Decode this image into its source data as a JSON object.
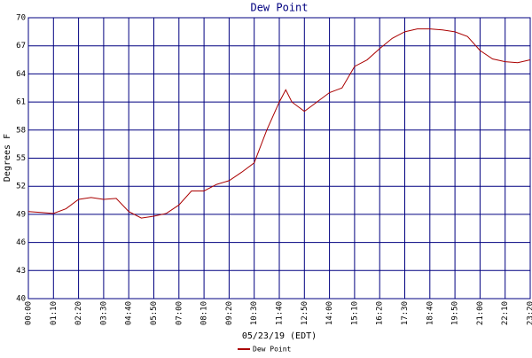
{
  "chart_data": {
    "type": "line",
    "title": "Dew Point",
    "x_label": "05/23/19 (EDT)",
    "y_label": "Degrees F",
    "x": [
      0,
      35,
      70,
      105,
      140,
      175,
      210,
      245,
      280,
      315,
      350,
      385,
      420,
      455,
      490,
      525,
      560,
      595,
      630,
      665,
      700,
      718,
      735,
      770,
      805,
      840,
      875,
      910,
      945,
      980,
      1015,
      1050,
      1085,
      1120,
      1155,
      1190,
      1225,
      1260,
      1295,
      1330,
      1365,
      1400
    ],
    "series": [
      {
        "name": "Dew Point",
        "color": "#aa0000",
        "values": [
          49.3,
          49.2,
          49.1,
          49.6,
          50.6,
          50.8,
          50.6,
          50.7,
          49.3,
          48.6,
          48.8,
          49.1,
          50.0,
          51.5,
          51.5,
          52.2,
          52.6,
          53.5,
          54.5,
          58,
          61,
          62.3,
          61,
          60,
          61,
          62,
          62.5,
          64.8,
          65.5,
          66.7,
          67.8,
          68.5,
          68.8,
          68.8,
          68.7,
          68.5,
          68,
          66.5,
          65.6,
          65.3,
          65.2,
          65.5
        ]
      }
    ],
    "xlim": [
      0,
      1400
    ],
    "xticks": [
      {
        "value": 0,
        "label": "00:00"
      },
      {
        "value": 70,
        "label": "01:10"
      },
      {
        "value": 140,
        "label": "02:20"
      },
      {
        "value": 210,
        "label": "03:30"
      },
      {
        "value": 280,
        "label": "04:40"
      },
      {
        "value": 350,
        "label": "05:50"
      },
      {
        "value": 420,
        "label": "07:00"
      },
      {
        "value": 490,
        "label": "08:10"
      },
      {
        "value": 560,
        "label": "09:20"
      },
      {
        "value": 630,
        "label": "10:30"
      },
      {
        "value": 700,
        "label": "11:40"
      },
      {
        "value": 770,
        "label": "12:50"
      },
      {
        "value": 840,
        "label": "14:00"
      },
      {
        "value": 910,
        "label": "15:10"
      },
      {
        "value": 980,
        "label": "16:20"
      },
      {
        "value": 1050,
        "label": "17:30"
      },
      {
        "value": 1120,
        "label": "18:40"
      },
      {
        "value": 1190,
        "label": "19:50"
      },
      {
        "value": 1260,
        "label": "21:00"
      },
      {
        "value": 1330,
        "label": "22:10"
      },
      {
        "value": 1400,
        "label": "23:20"
      }
    ],
    "ylim": [
      40,
      70
    ],
    "yticks": [
      40,
      43,
      46,
      49,
      52,
      55,
      58,
      61,
      64,
      67,
      70
    ],
    "grid": true,
    "grid_color": "#000080"
  }
}
